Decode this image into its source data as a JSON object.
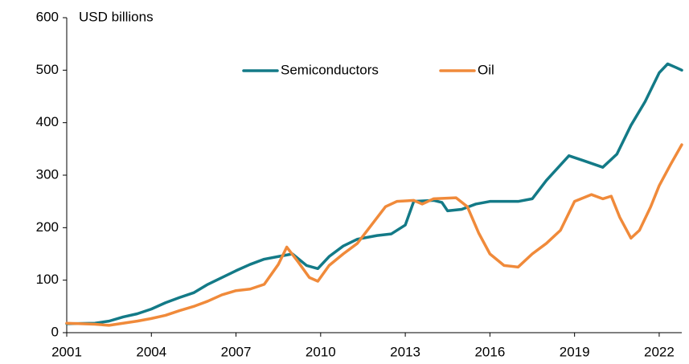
{
  "chart_data": {
    "type": "line",
    "ylabel": "USD billions",
    "xlim": [
      2001,
      2022.8
    ],
    "xticks": [
      2001,
      2004,
      2007,
      2010,
      2013,
      2016,
      2019,
      2022
    ],
    "ylim": [
      0,
      600
    ],
    "yticks": [
      0,
      100,
      200,
      300,
      400,
      500,
      600
    ],
    "grid": false,
    "legend": "top",
    "series": [
      {
        "name": "Semiconductors",
        "color": "#137a87",
        "x": [
          2001,
          2002,
          2002.5,
          2003,
          2003.5,
          2004,
          2004.5,
          2005,
          2005.5,
          2006,
          2006.5,
          2007,
          2007.5,
          2008,
          2008.5,
          2009,
          2009.5,
          2009.9,
          2010.3,
          2010.8,
          2011.3,
          2012,
          2012.5,
          2013,
          2013.3,
          2014,
          2014.3,
          2014.5,
          2015,
          2015.5,
          2016,
          2017,
          2017.5,
          2018,
          2018.8,
          2019.3,
          2020,
          2020.5,
          2021,
          2021.5,
          2022,
          2022.3,
          2022.6,
          2022.8
        ],
        "values": [
          17,
          18,
          22,
          30,
          36,
          45,
          57,
          67,
          76,
          92,
          105,
          118,
          130,
          140,
          145,
          150,
          128,
          122,
          145,
          165,
          178,
          185,
          188,
          205,
          250,
          252,
          248,
          232,
          235,
          245,
          250,
          250,
          255,
          290,
          337,
          328,
          315,
          340,
          395,
          440,
          495,
          512,
          505,
          500
        ]
      },
      {
        "name": "Oil",
        "color": "#f08a3a",
        "x": [
          2001,
          2002,
          2002.5,
          2003,
          2003.5,
          2004,
          2004.5,
          2005,
          2005.5,
          2006,
          2006.5,
          2007,
          2007.5,
          2008,
          2008.5,
          2008.8,
          2009.2,
          2009.6,
          2009.9,
          2010.3,
          2010.8,
          2011.3,
          2011.8,
          2012.3,
          2012.7,
          2013.3,
          2013.6,
          2014,
          2014.8,
          2015.2,
          2015.6,
          2016,
          2016.5,
          2017,
          2017.5,
          2018,
          2018.5,
          2019,
          2019.6,
          2020,
          2020.3,
          2020.6,
          2021,
          2021.3,
          2021.7,
          2022,
          2022.4,
          2022.8
        ],
        "values": [
          18,
          16,
          14,
          18,
          22,
          27,
          33,
          42,
          50,
          60,
          72,
          80,
          83,
          92,
          130,
          163,
          135,
          105,
          98,
          128,
          150,
          170,
          205,
          240,
          250,
          252,
          245,
          255,
          257,
          240,
          190,
          150,
          128,
          125,
          150,
          170,
          195,
          250,
          263,
          255,
          260,
          220,
          180,
          195,
          240,
          280,
          320,
          358
        ]
      }
    ]
  }
}
